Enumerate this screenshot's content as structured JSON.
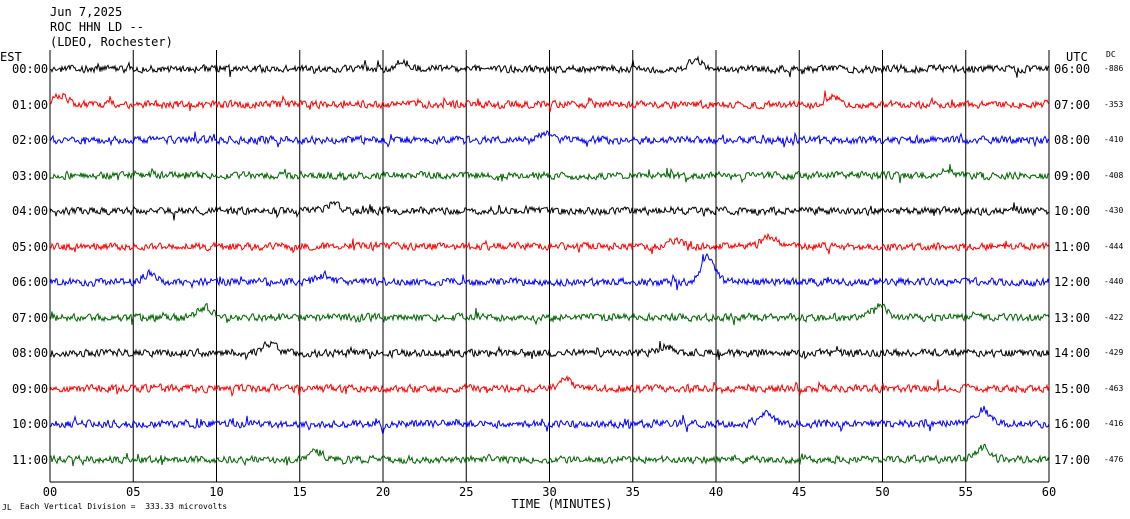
{
  "header": {
    "date": "Jun 7,2025",
    "station": "ROC HHN LD --",
    "network": "(LDEO, Rochester)"
  },
  "left_tz": "EST",
  "right_tz": "UTC",
  "dc_label": "DC",
  "xlabel": "TIME (MINUTES)",
  "footnote_marker": "JL",
  "footnote": "Each Vertical Division =  333.33 microvolts",
  "chart_data": {
    "type": "line",
    "title": "",
    "xlabel": "TIME (MINUTES)",
    "xlim": [
      0,
      60
    ],
    "x_ticks": [
      "00",
      "05",
      "10",
      "15",
      "20",
      "25",
      "30",
      "35",
      "40",
      "45",
      "50",
      "55",
      "60"
    ],
    "grid": true,
    "series": [
      {
        "est": "00:00",
        "utc": "06:00",
        "dc": "-886",
        "color": "#000000",
        "events": [
          {
            "t": 21.2,
            "amp": 7
          },
          {
            "t": 38.8,
            "amp": 9
          }
        ]
      },
      {
        "est": "01:00",
        "utc": "07:00",
        "dc": "-353",
        "color": "#ff0000",
        "events": [
          {
            "t": 0.6,
            "amp": 10
          },
          {
            "t": 47.0,
            "amp": 8
          }
        ]
      },
      {
        "est": "02:00",
        "utc": "08:00",
        "dc": "-410",
        "color": "#0000ff",
        "events": [
          {
            "t": 29.8,
            "amp": 6
          }
        ]
      },
      {
        "est": "03:00",
        "utc": "09:00",
        "dc": "-408",
        "color": "#006400",
        "events": [
          {
            "t": 53.8,
            "amp": 5
          }
        ]
      },
      {
        "est": "04:00",
        "utc": "10:00",
        "dc": "-430",
        "color": "#000000",
        "events": [
          {
            "t": 17.0,
            "amp": 7
          }
        ]
      },
      {
        "est": "05:00",
        "utc": "11:00",
        "dc": "-444",
        "color": "#ff0000",
        "events": [
          {
            "t": 37.5,
            "amp": 6
          },
          {
            "t": 43.2,
            "amp": 10
          }
        ]
      },
      {
        "est": "06:00",
        "utc": "12:00",
        "dc": "-440",
        "color": "#0000ff",
        "events": [
          {
            "t": 6.0,
            "amp": 8
          },
          {
            "t": 16.5,
            "amp": 7
          },
          {
            "t": 39.5,
            "amp": 24
          }
        ]
      },
      {
        "est": "07:00",
        "utc": "13:00",
        "dc": "-422",
        "color": "#006400",
        "events": [
          {
            "t": 9.3,
            "amp": 10
          },
          {
            "t": 49.8,
            "amp": 12
          }
        ]
      },
      {
        "est": "08:00",
        "utc": "14:00",
        "dc": "-429",
        "color": "#000000",
        "events": [
          {
            "t": 13.2,
            "amp": 9
          },
          {
            "t": 37.0,
            "amp": 7
          }
        ]
      },
      {
        "est": "09:00",
        "utc": "15:00",
        "dc": "-463",
        "color": "#ff0000",
        "events": [
          {
            "t": 31.0,
            "amp": 9
          }
        ]
      },
      {
        "est": "10:00",
        "utc": "16:00",
        "dc": "-416",
        "color": "#0000ff",
        "events": [
          {
            "t": 43.0,
            "amp": 10
          },
          {
            "t": 56.0,
            "amp": 14
          }
        ]
      },
      {
        "est": "11:00",
        "utc": "17:00",
        "dc": "-476",
        "color": "#006400",
        "events": [
          {
            "t": 16.0,
            "amp": 8
          },
          {
            "t": 56.0,
            "amp": 12
          }
        ]
      }
    ]
  }
}
